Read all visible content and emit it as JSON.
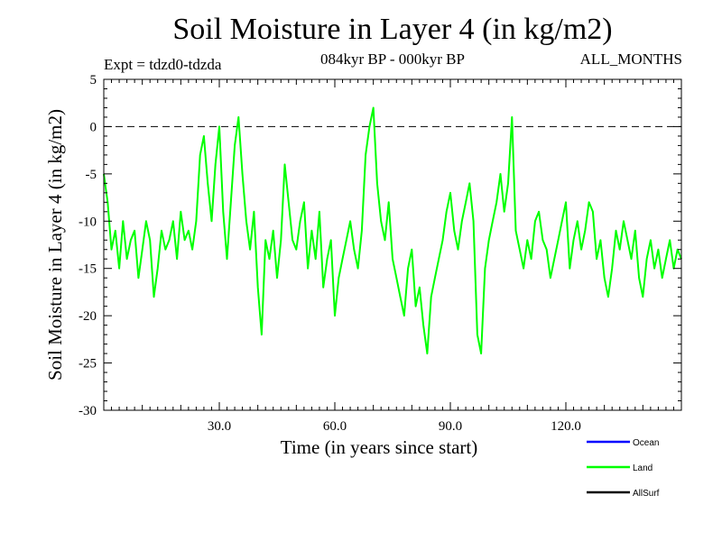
{
  "chart_data": {
    "type": "line",
    "title": "Soil Moisture in Layer 4 (in kg/m2)",
    "experiment": "Expt = tdzd0-tdzda",
    "subtitle": "084kyr BP - 000kyr BP",
    "months_label": "ALL_MONTHS",
    "xlabel": "Time (in years since start)",
    "ylabel": "Soil Moisture in Layer 4 (in kg/m2)",
    "xlim": [
      0,
      150
    ],
    "ylim": [
      -30,
      5
    ],
    "x_ticks": [
      30,
      60,
      90,
      120
    ],
    "x_tick_labels": [
      "30.0",
      "60.0",
      "90.0",
      "120.0"
    ],
    "y_ticks": [
      5,
      0,
      -5,
      -10,
      -15,
      -20,
      -25,
      -30
    ],
    "y_tick_labels": [
      "5",
      "0",
      "-5",
      "-10",
      "-15",
      "-20",
      "-25",
      "-30"
    ],
    "reference_line": 0,
    "legend": [
      {
        "name": "Ocean",
        "color": "#0000ff"
      },
      {
        "name": "Land",
        "color": "#00ff00"
      },
      {
        "name": "AllSurf",
        "color": "#000000"
      }
    ],
    "series": [
      {
        "name": "Land",
        "color": "#00ff00",
        "x_start": 0,
        "x_step": 1,
        "values": [
          -5,
          -8,
          -13,
          -11,
          -15,
          -10,
          -14,
          -12,
          -11,
          -16,
          -13,
          -10,
          -12,
          -18,
          -15,
          -11,
          -13,
          -12,
          -10,
          -14,
          -9,
          -12,
          -11,
          -13,
          -10,
          -3,
          -1,
          -6,
          -10,
          -4,
          0,
          -9,
          -14,
          -8,
          -2,
          1,
          -5,
          -10,
          -13,
          -9,
          -17,
          -22,
          -12,
          -14,
          -11,
          -16,
          -12,
          -4,
          -8,
          -12,
          -13,
          -10,
          -8,
          -15,
          -11,
          -14,
          -9,
          -17,
          -14,
          -12,
          -20,
          -16,
          -14,
          -12,
          -10,
          -13,
          -15,
          -11,
          -3,
          0,
          2,
          -6,
          -10,
          -12,
          -8,
          -14,
          -16,
          -18,
          -20,
          -15,
          -13,
          -19,
          -17,
          -21,
          -24,
          -18,
          -16,
          -14,
          -12,
          -9,
          -7,
          -11,
          -13,
          -10,
          -8,
          -6,
          -10,
          -22,
          -24,
          -15,
          -12,
          -10,
          -8,
          -5,
          -9,
          -6,
          1,
          -11,
          -13,
          -15,
          -12,
          -14,
          -10,
          -9,
          -12,
          -13,
          -16,
          -14,
          -12,
          -10,
          -8,
          -15,
          -12,
          -10,
          -13,
          -11,
          -8,
          -9,
          -14,
          -12,
          -16,
          -18,
          -15,
          -11,
          -13,
          -10,
          -12,
          -14,
          -11,
          -16,
          -18,
          -14,
          -12,
          -15,
          -13,
          -16,
          -14,
          -12,
          -15,
          -13,
          -14
        ]
      }
    ]
  }
}
